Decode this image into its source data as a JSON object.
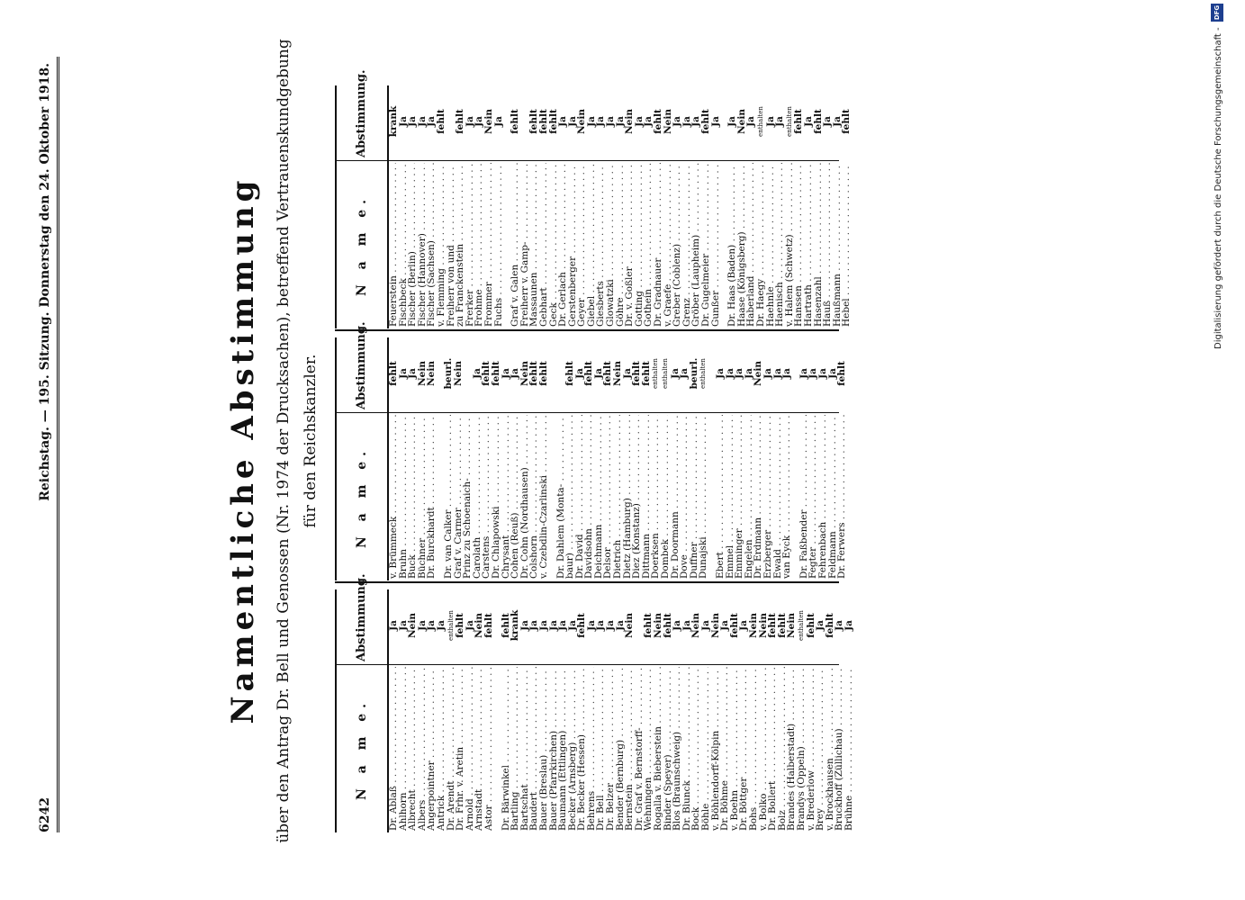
{
  "header": {
    "page_number": "6242",
    "running_title": "Reichstag. — 195. Sitzung. Donnerstag den 24. Oktober 1918."
  },
  "title": "Namentliche Abstimmung",
  "subtitle_line1": "über den Antrag Dr. Bell und Genossen (Nr. 1974 der Drucksachen), betreffend Vertrauenskundgebung",
  "subtitle_line2": "für den Reichskanzler.",
  "column_header_name": "N a m e.",
  "column_header_vote": "Abstimmung.",
  "columns": [
    {
      "rows": [
        {
          "name": "Dr. Ablaß",
          "vote": "Ja"
        },
        {
          "name": "Ahlhorn",
          "vote": "Ja"
        },
        {
          "name": "Albrecht",
          "vote": "Nein"
        },
        {
          "name": "Albers",
          "vote": "Ja"
        },
        {
          "name": "Angerpointner",
          "vote": "Ja"
        },
        {
          "name": "Antrick",
          "vote": "Ja"
        },
        {
          "name": "Dr. Arendt",
          "vote": "enthalten"
        },
        {
          "name": "Dr. Frhr. v. Aretin",
          "vote": "fehlt"
        },
        {
          "name": "Arnold",
          "vote": "Ja"
        },
        {
          "name": "Arnstadt",
          "vote": "Nein"
        },
        {
          "name": "Astor",
          "vote": "fehlt"
        },
        {
          "gap": true
        },
        {
          "name": "Dr. Bärwinkel",
          "vote": "fehlt"
        },
        {
          "name": "Bartling",
          "vote": "krank"
        },
        {
          "name": "Bartschat",
          "vote": "Ja"
        },
        {
          "name": "Baudert",
          "vote": "Ja"
        },
        {
          "name": "Bauer (Breslau)",
          "vote": "Ja"
        },
        {
          "name": "Bauer (Pfarrkirchen)",
          "vote": "Ja"
        },
        {
          "name": "Baumann (Ettlingen)",
          "vote": "Ja"
        },
        {
          "name": "Becker (Arnsberg)",
          "vote": "Ja"
        },
        {
          "name": "Dr. Becker (Hessen)",
          "vote": "fehlt"
        },
        {
          "name": "Behrens",
          "vote": "Ja"
        },
        {
          "name": "Dr. Bell",
          "vote": "Ja"
        },
        {
          "name": "Dr. Belzer",
          "vote": "Ja"
        },
        {
          "name": "Bender (Bernburg)",
          "vote": "Ja"
        },
        {
          "name": "Bernstein",
          "vote": "Nein"
        },
        {
          "name": "Dr. Graf v. Bernstorff-",
          "vote": ""
        },
        {
          "name": "   Wehningen",
          "vote": "fehlt"
        },
        {
          "name": "Rogalla v. Bieberstein",
          "vote": "Nein"
        },
        {
          "name": "Binder (Speyer)",
          "vote": "fehlt"
        },
        {
          "name": "Blos (Braunschweig)",
          "vote": "Ja"
        },
        {
          "name": "Dr. Blunck",
          "vote": "Ja"
        },
        {
          "name": "Bock",
          "vote": "Nein"
        },
        {
          "name": "Böhle",
          "vote": "Ja"
        },
        {
          "name": "v. Böhlendorff-Kölpin",
          "vote": "Nein"
        },
        {
          "name": "Dr. Böhme",
          "vote": "Ja"
        },
        {
          "name": "v. Boehn",
          "vote": "fehlt"
        },
        {
          "name": "Dr. Böttger",
          "vote": "Ja"
        },
        {
          "name": "Bohs",
          "vote": "Nein"
        },
        {
          "name": "v. Bolko",
          "vote": "Nein"
        },
        {
          "name": "Dr. Bollert",
          "vote": "fehlt"
        },
        {
          "name": "Bolz",
          "vote": "fehlt"
        },
        {
          "name": "Brandes (Halberstadt)",
          "vote": "Nein"
        },
        {
          "name": "Brandys (Oppeln)",
          "vote": "enthalten"
        },
        {
          "name": "v. Brederlow",
          "vote": "fehlt"
        },
        {
          "name": "Brey",
          "vote": "Ja"
        },
        {
          "name": "v. Brockhausen",
          "vote": "fehlt"
        },
        {
          "name": "Bruckhoff (Züllichau)",
          "vote": "Ja"
        },
        {
          "name": "Brühne",
          "vote": "Ja"
        }
      ]
    },
    {
      "rows": [
        {
          "name": "v. Brümmeck",
          "vote": "fehlt"
        },
        {
          "name": "Bruhn",
          "vote": "Ja"
        },
        {
          "name": "Buck",
          "vote": "Ja"
        },
        {
          "name": "Büchner",
          "vote": "Nein"
        },
        {
          "name": "Dr. Burckhardt",
          "vote": "Nein"
        },
        {
          "gap": true
        },
        {
          "name": "Dr. van Calker",
          "vote": "beurl."
        },
        {
          "name": "Graf v. Carmer",
          "vote": "Nein"
        },
        {
          "name": "Prinz zu Schoenaich-",
          "vote": ""
        },
        {
          "name": "   Carolath",
          "vote": "Ja"
        },
        {
          "name": "Carstens",
          "vote": "fehlt"
        },
        {
          "name": "Dr. Chlapowski",
          "vote": "fehlt"
        },
        {
          "name": "Chrysant",
          "vote": "Ja"
        },
        {
          "name": "Cohen (Reuß)",
          "vote": "Ja"
        },
        {
          "name": "Dr. Cohn (Nordhausen)",
          "vote": "Nein"
        },
        {
          "name": "Colshorn",
          "vote": "fehlt"
        },
        {
          "name": "v. Czebdlin-Czarlinski",
          "vote": "fehlt"
        },
        {
          "gap": true
        },
        {
          "name": "Dr. Dahlem (Monta-",
          "vote": ""
        },
        {
          "name": "   baur)",
          "vote": "fehlt"
        },
        {
          "name": "Dr. David",
          "vote": "Ja"
        },
        {
          "name": "Davidsohn",
          "vote": "fehlt"
        },
        {
          "name": "Deichmann",
          "vote": "Ja"
        },
        {
          "name": "Delsor",
          "vote": "fehlt"
        },
        {
          "name": "Dietrich",
          "vote": "Nein"
        },
        {
          "name": "Dietz (Hamburg)",
          "vote": "Ja"
        },
        {
          "name": "Diez (Konstanz)",
          "vote": "fehlt"
        },
        {
          "name": "Dittmann",
          "vote": "fehlt"
        },
        {
          "name": "Doerksen",
          "vote": "enthalten"
        },
        {
          "name": "Dombek",
          "vote": "enthalten"
        },
        {
          "name": "Dr. Doormann",
          "vote": "Ja"
        },
        {
          "name": "Dove",
          "vote": "Ja"
        },
        {
          "name": "Duffner",
          "vote": "beurl."
        },
        {
          "name": "Dunajski",
          "vote": "enthalten"
        },
        {
          "gap": true
        },
        {
          "name": "Ebert",
          "vote": "Ja"
        },
        {
          "name": "Emmel",
          "vote": "Ja"
        },
        {
          "name": "Emminger",
          "vote": "Ja"
        },
        {
          "name": "Engelen",
          "vote": "Ja"
        },
        {
          "name": "Dr. Erdmann",
          "vote": "Nein"
        },
        {
          "name": "Erzberger",
          "vote": "Ja"
        },
        {
          "name": "Ewald",
          "vote": "Ja"
        },
        {
          "name": "van Eyck",
          "vote": "Ja"
        },
        {
          "gap": true
        },
        {
          "name": "Dr. Faßbender",
          "vote": "Ja"
        },
        {
          "name": "Fegter",
          "vote": "Ja"
        },
        {
          "name": "Fehrenbach",
          "vote": "Ja"
        },
        {
          "name": "Feldmann",
          "vote": "Ja"
        },
        {
          "name": "Dr. Ferwers",
          "vote": "fehlt"
        }
      ]
    },
    {
      "rows": [
        {
          "name": "Feuerstein",
          "vote": "krank"
        },
        {
          "name": "Fischbeck",
          "vote": "Ja"
        },
        {
          "name": "Fischer (Berlin)",
          "vote": "Ja"
        },
        {
          "name": "Fischer (Hannover)",
          "vote": "Ja"
        },
        {
          "name": "Fischer (Sachsen)",
          "vote": "Ja"
        },
        {
          "name": "v. Flemming",
          "vote": "fehlt"
        },
        {
          "name": "Freiherr von und",
          "vote": ""
        },
        {
          "name": "   zu Franckenstein",
          "vote": "fehlt"
        },
        {
          "name": "Frerker",
          "vote": "Ja"
        },
        {
          "name": "Frohme",
          "vote": "Ja"
        },
        {
          "name": "Frommer",
          "vote": "Nein"
        },
        {
          "name": "Fuchs",
          "vote": "Ja"
        },
        {
          "gap": true
        },
        {
          "name": "Graf v. Galen",
          "vote": "fehlt"
        },
        {
          "name": "Freiherr v. Gamp-",
          "vote": ""
        },
        {
          "name": "   Massaunen",
          "vote": "fehlt"
        },
        {
          "name": "Gebhart",
          "vote": "fehlt"
        },
        {
          "name": "Geck",
          "vote": "fehlt"
        },
        {
          "name": "Dr. Gerlach",
          "vote": "Ja"
        },
        {
          "name": "Gerstenberger",
          "vote": "Ja"
        },
        {
          "name": "Geyer",
          "vote": "Nein"
        },
        {
          "name": "Giebel",
          "vote": "Ja"
        },
        {
          "name": "Giesberts",
          "vote": "Ja"
        },
        {
          "name": "Glowatzki",
          "vote": "Ja"
        },
        {
          "name": "Göhre",
          "vote": "Ja"
        },
        {
          "name": "Dr. v. Goßler",
          "vote": "Nein"
        },
        {
          "name": "Gotting",
          "vote": "Ja"
        },
        {
          "name": "Gothein",
          "vote": "Ja"
        },
        {
          "name": "Dr. Gradnauer",
          "vote": "fehlt"
        },
        {
          "name": "v. Graefe",
          "vote": "Nein"
        },
        {
          "name": "Greber (Coblenz)",
          "vote": "Ja"
        },
        {
          "name": "Grenz",
          "vote": "Ja"
        },
        {
          "name": "Gröber (Laupheim)",
          "vote": "Ja"
        },
        {
          "name": "Dr. Gugelmeier",
          "vote": "fehlt"
        },
        {
          "name": "Gunßer",
          "vote": "Ja"
        },
        {
          "gap": true
        },
        {
          "name": "Dr. Haas (Baden)",
          "vote": "Ja"
        },
        {
          "name": "Haase (Königsberg)",
          "vote": "Nein"
        },
        {
          "name": "Haberland",
          "vote": "Ja"
        },
        {
          "name": "Dr. Haegy",
          "vote": "enthalten"
        },
        {
          "name": "Haehnle",
          "vote": "Ja"
        },
        {
          "name": "Haenisch",
          "vote": "Ja"
        },
        {
          "name": "v. Halem (Schwetz)",
          "vote": "enthalten"
        },
        {
          "name": "Hanssen",
          "vote": "fehlt"
        },
        {
          "name": "Hartrath",
          "vote": "Ja"
        },
        {
          "name": "Hasenzahl",
          "vote": "fehlt"
        },
        {
          "name": "Hauß",
          "vote": "Ja"
        },
        {
          "name": "Haußmann",
          "vote": "Ja"
        },
        {
          "name": "Hebel",
          "vote": "fehlt"
        }
      ]
    }
  ],
  "credit": {
    "text": "Digitalisierung gefördert durch die Deutsche Forschungsgemeinschaft -",
    "logo": "DFG"
  }
}
